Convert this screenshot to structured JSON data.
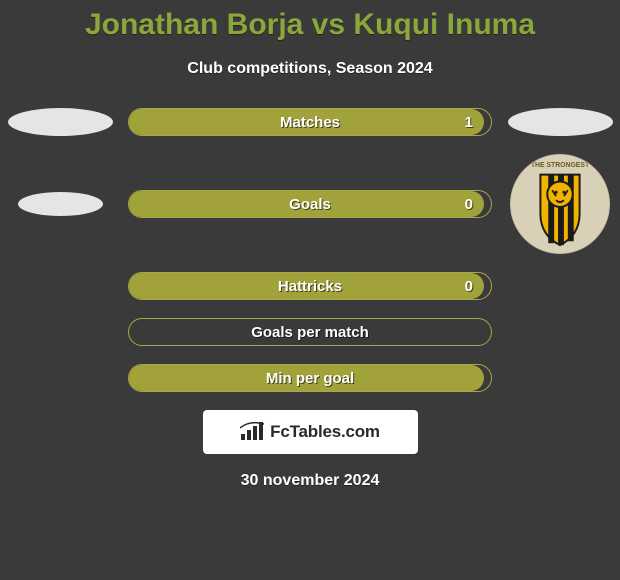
{
  "title": "Jonathan Borja vs Kuqui Inuma",
  "title_color": "#8aa83a",
  "subtitle": "Club competitions, Season 2024",
  "background_color": "#3a3a3a",
  "bar_border_color": "#a6a64a",
  "fill_color": "#a2a23b",
  "stats": [
    {
      "label": "Matches",
      "value_text": "1",
      "fill_pct": 98,
      "side": "left"
    },
    {
      "label": "Goals",
      "value_text": "0",
      "fill_pct": 98,
      "side": "left"
    },
    {
      "label": "Hattricks",
      "value_text": "0",
      "fill_pct": 98,
      "side": "left"
    },
    {
      "label": "Goals per match",
      "value_text": "",
      "fill_pct": 0,
      "side": "left"
    },
    {
      "label": "Min per goal",
      "value_text": "",
      "fill_pct": 98,
      "side": "left"
    }
  ],
  "left_side": {
    "shapes": [
      "ellipse-large",
      "ellipse-small"
    ]
  },
  "right_side": {
    "shapes": [
      "ellipse-large",
      "club-badge"
    ],
    "badge_ring_text": "THE STRONGEST",
    "badge_colors": {
      "stripe1": "#f2b200",
      "stripe2": "#1a1a1a",
      "bg": "#f2b200",
      "tiger": "#1a1a1a",
      "ring_text": "#6a5d1a"
    }
  },
  "footer_tag_text": "FcTables.com",
  "date_text": "30 november 2024"
}
